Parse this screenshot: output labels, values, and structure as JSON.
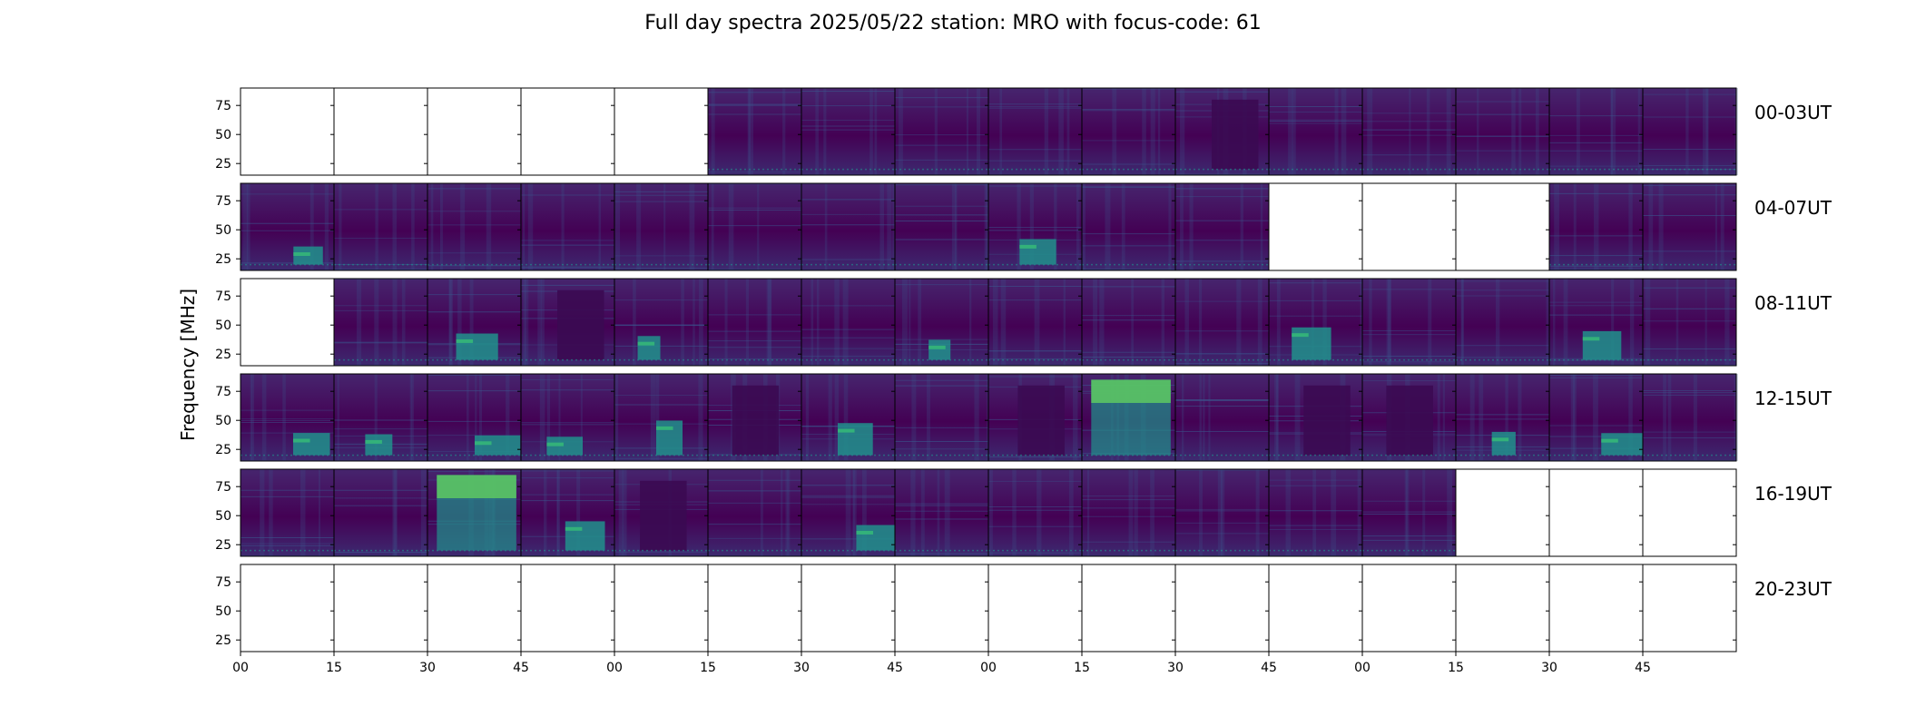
{
  "chart_data": {
    "type": "heatmap",
    "title": "Full day spectra 2025/05/22 station: MRO with focus-code: 61",
    "ylabel": "Frequency [MHz]",
    "xlabel": "",
    "ylim": [
      15,
      90
    ],
    "y_ticks": [
      "75",
      "50",
      "25"
    ],
    "y_tick_values": [
      75,
      50,
      25
    ],
    "x_tick_labels": [
      "00",
      "15",
      "30",
      "45",
      "00",
      "15",
      "30",
      "45",
      "00",
      "15",
      "30",
      "45",
      "00",
      "15",
      "30",
      "45"
    ],
    "colormap": "viridis",
    "panels_per_row": 16,
    "panel_minutes": 15,
    "rows": [
      {
        "label": "00-03UT",
        "panels": [
          "empty",
          "empty",
          "empty",
          "empty",
          "empty",
          "quiet",
          "quiet",
          "quiet",
          "quiet",
          "quiet",
          "dark-block",
          "quiet",
          "quiet",
          "quiet",
          "quiet",
          "quiet"
        ]
      },
      {
        "label": "04-07UT",
        "panels": [
          "burst",
          "quiet",
          "quiet",
          "quiet",
          "quiet",
          "quiet",
          "quiet",
          "quiet",
          "burst",
          "quiet",
          "quiet",
          "empty",
          "empty",
          "empty",
          "quiet",
          "quiet"
        ]
      },
      {
        "label": "08-11UT",
        "panels": [
          "empty",
          "quiet",
          "burst",
          "dark-block",
          "burst",
          "quiet",
          "quiet",
          "burst",
          "quiet",
          "quiet",
          "quiet",
          "burst",
          "quiet",
          "quiet",
          "burst",
          "quiet"
        ]
      },
      {
        "label": "12-15UT",
        "panels": [
          "burst",
          "burst",
          "burst",
          "burst",
          "burst",
          "dark-block",
          "burst",
          "quiet",
          "dark-block",
          "bright",
          "quiet",
          "dark-block",
          "dark-block",
          "burst",
          "burst",
          "quiet"
        ]
      },
      {
        "label": "16-19UT",
        "panels": [
          "quiet",
          "quiet",
          "bright",
          "burst",
          "dark-block",
          "quiet",
          "burst",
          "quiet",
          "quiet",
          "quiet",
          "quiet",
          "quiet",
          "quiet",
          "empty",
          "empty",
          "empty"
        ]
      },
      {
        "label": "20-23UT",
        "panels": [
          "empty",
          "empty",
          "empty",
          "empty",
          "empty",
          "empty",
          "empty",
          "empty",
          "empty",
          "empty",
          "empty",
          "empty",
          "empty",
          "empty",
          "empty",
          "empty"
        ]
      }
    ]
  },
  "colors": {
    "background": "#440154",
    "dark": "#3b0a52",
    "mid": "#3b528b",
    "teal": "#21918c",
    "green": "#35b779",
    "bright": "#5ec962"
  }
}
